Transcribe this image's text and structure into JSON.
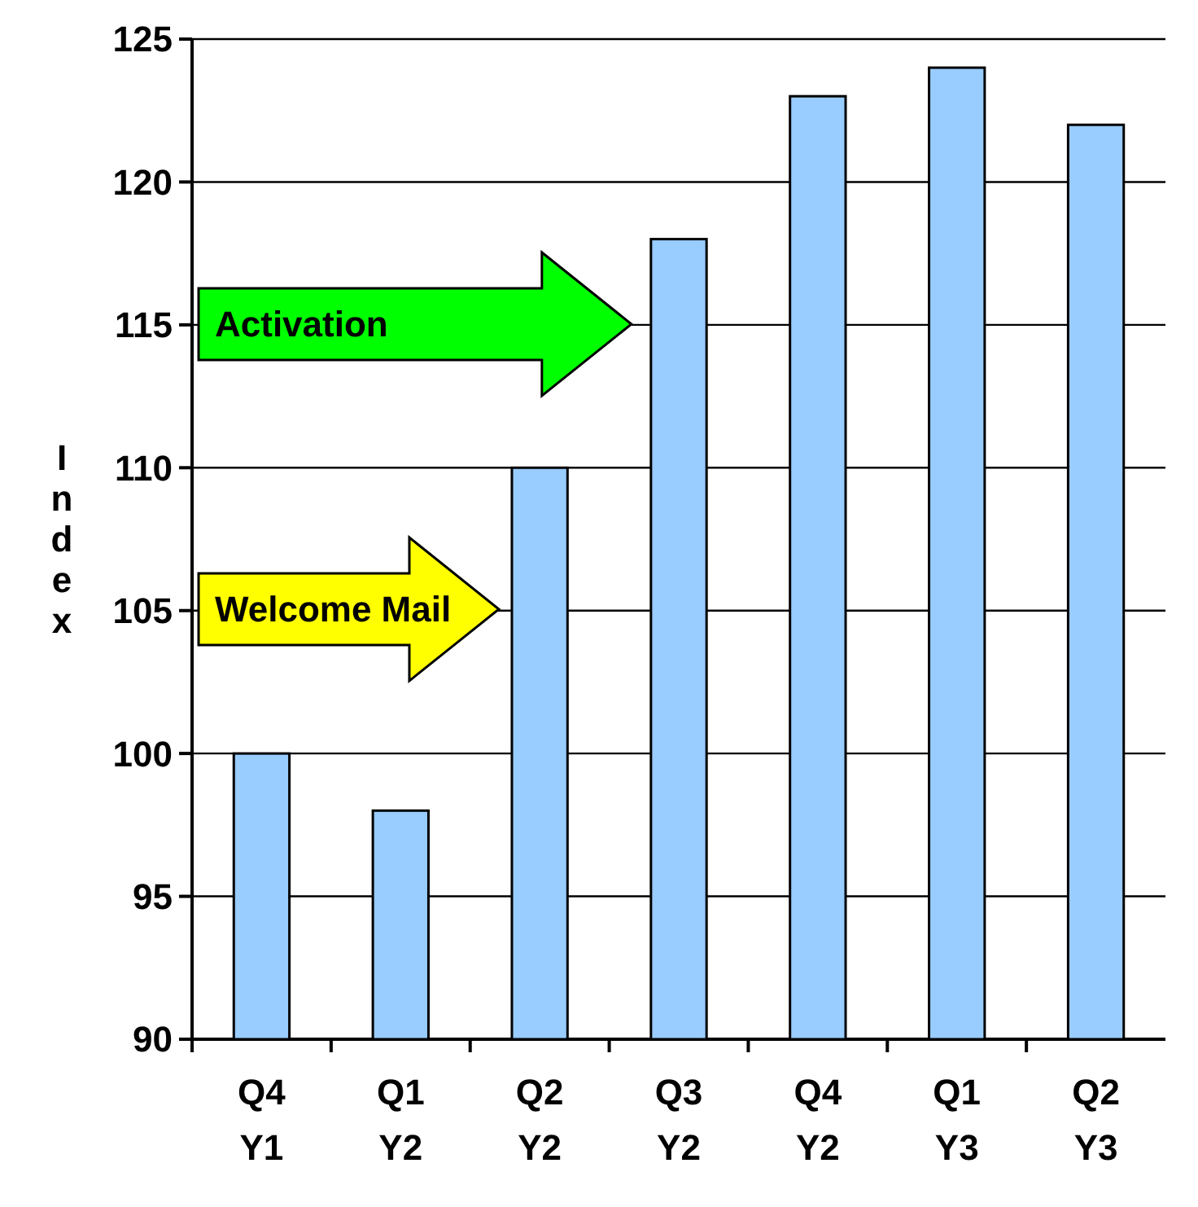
{
  "chart_data": {
    "type": "bar",
    "ylabel": "Index",
    "categories": [
      "Q4\nY1",
      "Q1\nY2",
      "Q2\nY2",
      "Q3\nY2",
      "Q4\nY2",
      "Q1\nY3",
      "Q2\nY3"
    ],
    "values": [
      100,
      98,
      110,
      118,
      123,
      124,
      122
    ],
    "color": "#99ccff",
    "ylim": [
      90,
      125
    ],
    "yticks": [
      90,
      95,
      100,
      105,
      110,
      115,
      120,
      125
    ],
    "grid": "y",
    "annotations": [
      "Activation",
      "Welcome Mail"
    ]
  }
}
